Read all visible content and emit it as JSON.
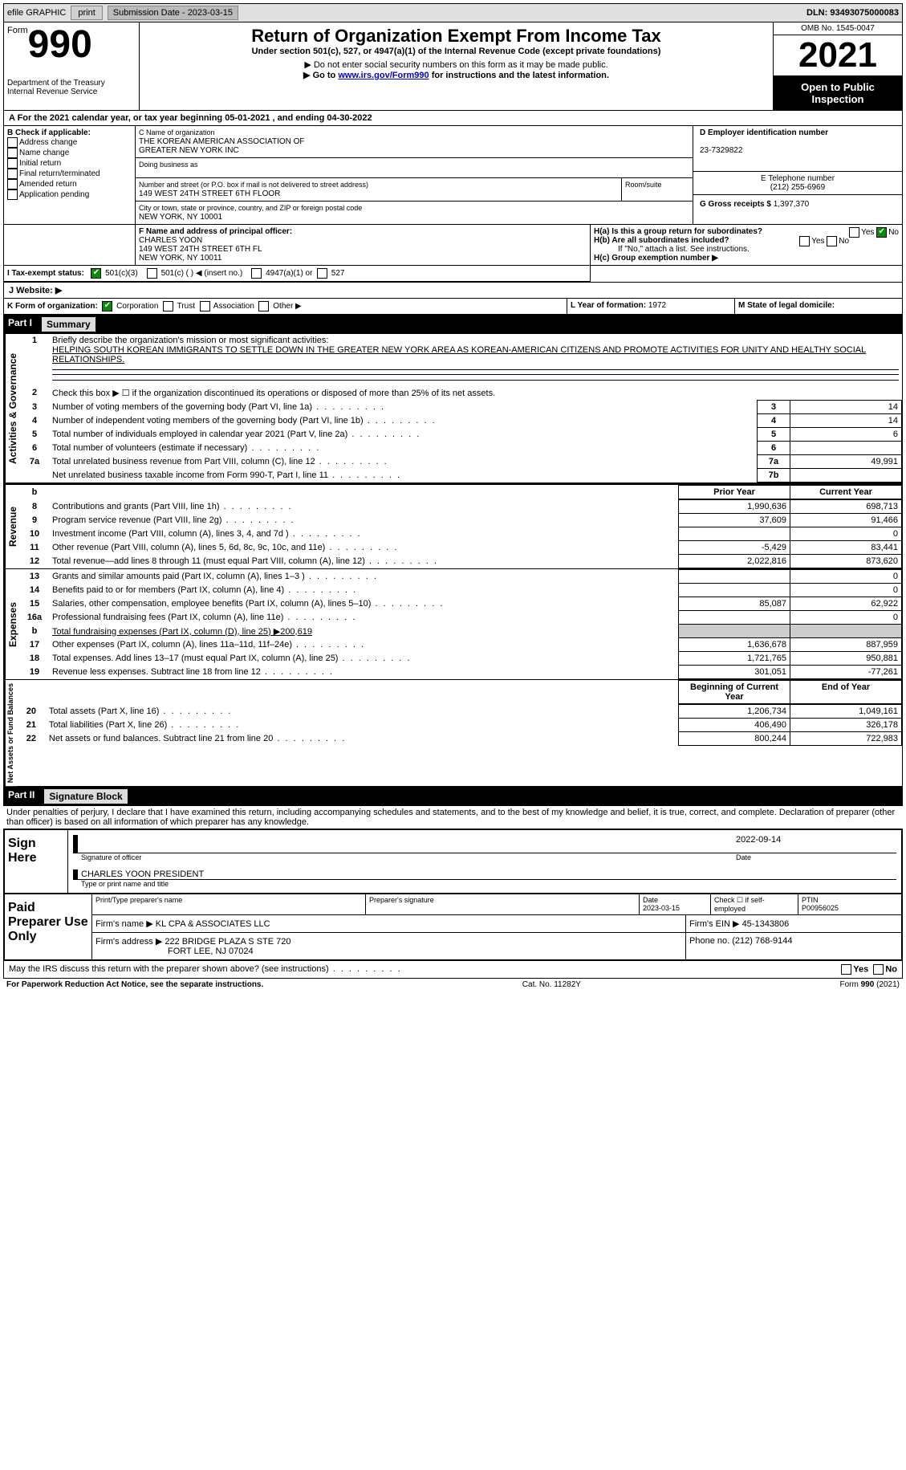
{
  "top_bar": {
    "efile_label": "efile GRAPHIC",
    "print_button": "print",
    "submission_label": "Submission Date - 2023-03-15",
    "dln_label": "DLN: 93493075000083"
  },
  "header": {
    "form_word": "Form",
    "form_number": "990",
    "department": "Department of the Treasury",
    "irs_line": "Internal Revenue Service",
    "title": "Return of Organization Exempt From Income Tax",
    "subtitle": "Under section 501(c), 527, or 4947(a)(1) of the Internal Revenue Code (except private foundations)",
    "note1": "▶ Do not enter social security numbers on this form as it may be made public.",
    "note2_prefix": "▶ Go to ",
    "note2_link": "www.irs.gov/Form990",
    "note2_suffix": " for instructions and the latest information.",
    "omb": "OMB No. 1545-0047",
    "year": "2021",
    "open_to_public": "Open to Public Inspection"
  },
  "period_line": "A For the 2021 calendar year, or tax year beginning 05-01-2021   , and ending 04-30-2022",
  "section_b": {
    "header": "B Check if applicable:",
    "items": [
      "Address change",
      "Name change",
      "Initial return",
      "Final return/terminated",
      "Amended return",
      "Application pending"
    ]
  },
  "section_c": {
    "label": "C Name of organization",
    "name1": "THE KOREAN AMERICAN ASSOCIATION OF",
    "name2": "GREATER NEW YORK INC",
    "dba_label": "Doing business as",
    "street_label": "Number and street (or P.O. box if mail is not delivered to street address)",
    "room_label": "Room/suite",
    "street": "149 WEST 24TH STREET 6TH FLOOR",
    "city_label": "City or town, state or province, country, and ZIP or foreign postal code",
    "city": "NEW YORK, NY  10001"
  },
  "section_d": {
    "label": "D Employer identification number",
    "value": "23-7329822"
  },
  "section_e": {
    "label": "E Telephone number",
    "value": "(212) 255-6969"
  },
  "section_g": {
    "label": "G Gross receipts $",
    "value": "1,397,370"
  },
  "section_f": {
    "label": "F  Name and address of principal officer:",
    "name": "CHARLES YOON",
    "street": "149 WEST 24TH STREET 6TH FL",
    "city": "NEW YORK, NY  10011"
  },
  "section_h": {
    "ha_label": "H(a)  Is this a group return for subordinates?",
    "hb_label": "H(b)  Are all subordinates included?",
    "hb_note": "If \"No,\" attach a list. See instructions.",
    "hc_label": "H(c)  Group exemption number ▶",
    "yes": "Yes",
    "no": "No"
  },
  "section_i": {
    "label": "I   Tax-exempt status:",
    "opt1": "501(c)(3)",
    "opt2": "501(c) (  ) ◀ (insert no.)",
    "opt3": "4947(a)(1) or",
    "opt4": "527"
  },
  "section_j": {
    "label": "J   Website: ▶"
  },
  "section_k": {
    "label": "K Form of organization:",
    "opt1": "Corporation",
    "opt2": "Trust",
    "opt3": "Association",
    "opt4": "Other ▶"
  },
  "section_l": {
    "label": "L Year of formation:",
    "value": "1972"
  },
  "section_m": {
    "label": "M State of legal domicile:"
  },
  "part1_label": "Part I",
  "part1_title": "Summary",
  "side_labels": {
    "ag": "Activities & Governance",
    "rev": "Revenue",
    "exp": "Expenses",
    "na": "Net Assets or\nFund Balances"
  },
  "line1_label": "Briefly describe the organization's mission or most significant activities:",
  "line1_text": "HELPING SOUTH KOREAN IMMIGRANTS TO SETTLE DOWN IN THE GREATER NEW YORK AREA AS KOREAN-AMERICAN CITIZENS AND PROMOTE ACTIVITIES FOR UNITY AND HEALTHY SOCIAL RELATIONSHIPS.",
  "line2_label": "Check this box ▶ ☐  if the organization discontinued its operations or disposed of more than 25% of its net assets.",
  "lines_3_7": [
    {
      "n": "3",
      "txt": "Number of voting members of the governing body (Part VI, line 1a)",
      "box": "3",
      "val": "14"
    },
    {
      "n": "4",
      "txt": "Number of independent voting members of the governing body (Part VI, line 1b)",
      "box": "4",
      "val": "14"
    },
    {
      "n": "5",
      "txt": "Total number of individuals employed in calendar year 2021 (Part V, line 2a)",
      "box": "5",
      "val": "6"
    },
    {
      "n": "6",
      "txt": "Total number of volunteers (estimate if necessary)",
      "box": "6",
      "val": ""
    },
    {
      "n": "7a",
      "txt": "Total unrelated business revenue from Part VIII, column (C), line 12",
      "box": "7a",
      "val": "49,991"
    },
    {
      "n": "",
      "txt": "Net unrelated business taxable income from Form 990-T, Part I, line 11",
      "box": "7b",
      "val": ""
    }
  ],
  "col_headers": {
    "prior": "Prior Year",
    "current": "Current Year",
    "begin": "Beginning of Current Year",
    "end": "End of Year"
  },
  "revenue_lines": [
    {
      "n": "8",
      "txt": "Contributions and grants (Part VIII, line 1h)",
      "prior": "1,990,636",
      "curr": "698,713"
    },
    {
      "n": "9",
      "txt": "Program service revenue (Part VIII, line 2g)",
      "prior": "37,609",
      "curr": "91,466"
    },
    {
      "n": "10",
      "txt": "Investment income (Part VIII, column (A), lines 3, 4, and 7d )",
      "prior": "",
      "curr": "0"
    },
    {
      "n": "11",
      "txt": "Other revenue (Part VIII, column (A), lines 5, 6d, 8c, 9c, 10c, and 11e)",
      "prior": "-5,429",
      "curr": "83,441"
    },
    {
      "n": "12",
      "txt": "Total revenue—add lines 8 through 11 (must equal Part VIII, column (A), line 12)",
      "prior": "2,022,816",
      "curr": "873,620"
    }
  ],
  "expense_lines": [
    {
      "n": "13",
      "txt": "Grants and similar amounts paid (Part IX, column (A), lines 1–3 )",
      "prior": "",
      "curr": "0"
    },
    {
      "n": "14",
      "txt": "Benefits paid to or for members (Part IX, column (A), line 4)",
      "prior": "",
      "curr": "0"
    },
    {
      "n": "15",
      "txt": "Salaries, other compensation, employee benefits (Part IX, column (A), lines 5–10)",
      "prior": "85,087",
      "curr": "62,922"
    },
    {
      "n": "16a",
      "txt": "Professional fundraising fees (Part IX, column (A), line 11e)",
      "prior": "",
      "curr": "0"
    },
    {
      "n": "b",
      "txt": "Total fundraising expenses (Part IX, column (D), line 25) ▶200,619",
      "grey": true
    },
    {
      "n": "17",
      "txt": "Other expenses (Part IX, column (A), lines 11a–11d, 11f–24e)",
      "prior": "1,636,678",
      "curr": "887,959"
    },
    {
      "n": "18",
      "txt": "Total expenses. Add lines 13–17 (must equal Part IX, column (A), line 25)",
      "prior": "1,721,765",
      "curr": "950,881"
    },
    {
      "n": "19",
      "txt": "Revenue less expenses. Subtract line 18 from line 12",
      "prior": "301,051",
      "curr": "-77,261"
    }
  ],
  "na_lines": [
    {
      "n": "20",
      "txt": "Total assets (Part X, line 16)",
      "prior": "1,206,734",
      "curr": "1,049,161"
    },
    {
      "n": "21",
      "txt": "Total liabilities (Part X, line 26)",
      "prior": "406,490",
      "curr": "326,178"
    },
    {
      "n": "22",
      "txt": "Net assets or fund balances. Subtract line 21 from line 20",
      "prior": "800,244",
      "curr": "722,983"
    }
  ],
  "part2_label": "Part II",
  "part2_title": "Signature Block",
  "declaration": "Under penalties of perjury, I declare that I have examined this return, including accompanying schedules and statements, and to the best of my knowledge and belief, it is true, correct, and complete. Declaration of preparer (other than officer) is based on all information of which preparer has any knowledge.",
  "sign_here": "Sign Here",
  "sig_officer_label": "Signature of officer",
  "sig_date_label": "Date",
  "sig_date": "2022-09-14",
  "sig_name": "CHARLES YOON  PRESIDENT",
  "sig_name_label": "Type or print name and title",
  "paid_prep": "Paid Preparer Use Only",
  "prep_cols": {
    "c1": "Print/Type preparer's name",
    "c2": "Preparer's signature",
    "c3": "Date",
    "c3v": "2023-03-15",
    "c4": "Check ☐ if self-employed",
    "c5": "PTIN",
    "c5v": "P00956025"
  },
  "firm_name_label": "Firm's name    ▶",
  "firm_name": "KL CPA & ASSOCIATES LLC",
  "firm_ein_label": "Firm's EIN ▶",
  "firm_ein": "45-1343806",
  "firm_addr_label": "Firm's address ▶",
  "firm_addr1": "222 BRIDGE PLAZA S STE 720",
  "firm_addr2": "FORT LEE, NJ  07024",
  "firm_phone_label": "Phone no.",
  "firm_phone": "(212) 768-9144",
  "discuss": "May the IRS discuss this return with the preparer shown above? (see instructions)",
  "footer": {
    "left": "For Paperwork Reduction Act Notice, see the separate instructions.",
    "mid": "Cat. No. 11282Y",
    "right": "Form 990 (2021)"
  }
}
